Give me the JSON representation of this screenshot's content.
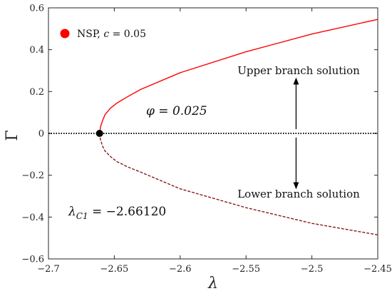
{
  "chart_data": {
    "type": "line",
    "xlabel": "λ",
    "ylabel": "Γ",
    "xlim": [
      -2.7,
      -2.45
    ],
    "ylim": [
      -0.6,
      0.6
    ],
    "xticks": [
      -2.7,
      -2.65,
      -2.6,
      -2.55,
      -2.5,
      -2.45
    ],
    "yticks": [
      -0.6,
      -0.4,
      -0.2,
      0,
      0.2,
      0.4,
      0.6
    ],
    "xtick_labels": [
      "−2.7",
      "−2.65",
      "−2.6",
      "−2.55",
      "−2.5",
      "−2.45"
    ],
    "ytick_labels": [
      "−0.6",
      "−0.4",
      "−0.2",
      "0",
      "0.2",
      "0.4",
      "0.6"
    ],
    "grid": false,
    "legend": {
      "placement": "top-left",
      "label": "NSP, ",
      "label_var": "c",
      "label_rest": " = 0.05"
    },
    "series": [
      {
        "role": "upper",
        "color": "#ff0000",
        "style": "solid",
        "x": [
          -2.6612,
          -2.6605,
          -2.659,
          -2.657,
          -2.653,
          -2.648,
          -2.64,
          -2.63,
          -2.6,
          -2.55,
          -2.5,
          -2.45
        ],
        "y": [
          0.0,
          0.03,
          0.06,
          0.09,
          0.12,
          0.145,
          0.175,
          0.21,
          0.29,
          0.39,
          0.475,
          0.545
        ]
      },
      {
        "role": "lower",
        "color": "#8b1a1a",
        "style": "dashed",
        "x": [
          -2.6612,
          -2.6605,
          -2.659,
          -2.657,
          -2.653,
          -2.648,
          -2.64,
          -2.63,
          -2.6,
          -2.55,
          -2.5,
          -2.45
        ],
        "y": [
          0.0,
          -0.03,
          -0.06,
          -0.085,
          -0.11,
          -0.135,
          -0.16,
          -0.185,
          -0.265,
          -0.355,
          -0.43,
          -0.485
        ]
      },
      {
        "role": "trivial",
        "color": "#000000",
        "style": "dotted",
        "x": [
          -2.7,
          -2.45
        ],
        "y": [
          0,
          0
        ]
      }
    ],
    "critical_point": {
      "x": -2.6612,
      "y": 0
    },
    "annotations": {
      "upper_branch": "Upper branch solution",
      "lower_branch": "Lower branch solution",
      "phi": "φ = 0.025",
      "lambda_c1_main": "λ",
      "lambda_c1_sub": "C1",
      "lambda_c1_rest": " = −2.66120"
    },
    "arrows": {
      "upper": {
        "from": [
          -2.512,
          0.02
        ],
        "to": [
          -2.512,
          0.25
        ]
      },
      "lower": {
        "from": [
          -2.512,
          -0.02
        ],
        "to": [
          -2.512,
          -0.25
        ]
      }
    }
  }
}
